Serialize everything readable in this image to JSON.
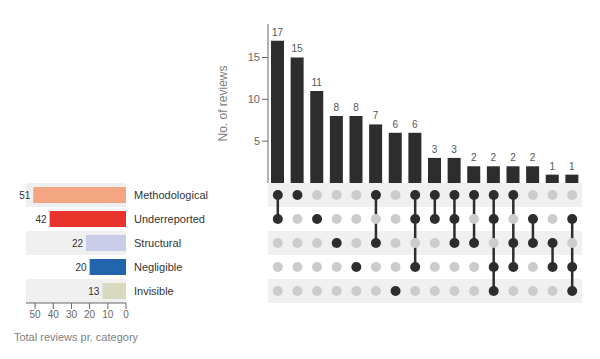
{
  "chart_data": [
    {
      "type": "bar",
      "ylabel": "No. of reviews",
      "values": [
        17,
        15,
        11,
        8,
        8,
        7,
        6,
        6,
        3,
        3,
        2,
        2,
        2,
        2,
        1,
        1
      ],
      "intersections": [
        [
          1,
          1,
          0,
          0,
          0
        ],
        [
          1,
          0,
          0,
          0,
          0
        ],
        [
          0,
          1,
          0,
          0,
          0
        ],
        [
          0,
          0,
          1,
          0,
          0
        ],
        [
          0,
          0,
          0,
          1,
          0
        ],
        [
          1,
          0,
          1,
          0,
          0
        ],
        [
          0,
          0,
          0,
          0,
          1
        ],
        [
          1,
          1,
          0,
          1,
          0
        ],
        [
          1,
          1,
          0,
          0,
          0
        ],
        [
          1,
          1,
          1,
          0,
          0
        ],
        [
          1,
          0,
          1,
          0,
          0
        ],
        [
          1,
          1,
          0,
          1,
          1
        ],
        [
          1,
          0,
          1,
          1,
          0
        ],
        [
          0,
          1,
          1,
          0,
          0
        ],
        [
          0,
          0,
          1,
          1,
          0
        ],
        [
          0,
          1,
          0,
          1,
          1
        ]
      ],
      "color": "#2d2d2d",
      "ylim": [
        0,
        19
      ],
      "yticks": [
        0,
        5,
        10,
        15
      ],
      "data_labels": true,
      "tick_labels": "y",
      "grid": false
    },
    {
      "type": "bar",
      "orientation": "horizontal",
      "xlabel": "Total reviews pr. category",
      "categories": [
        "Methodological",
        "Underreported",
        "Structural",
        "Negligible",
        "Invisible"
      ],
      "values": [
        51,
        42,
        22,
        20,
        13
      ],
      "colors": [
        "#f4a582",
        "#e8342a",
        "#c8cce8",
        "#2166ac",
        "#d9d9c0"
      ],
      "xlim": [
        55,
        0
      ],
      "xticks": [
        50,
        40,
        30,
        20,
        10,
        0
      ],
      "data_labels": true,
      "grid": false
    }
  ]
}
